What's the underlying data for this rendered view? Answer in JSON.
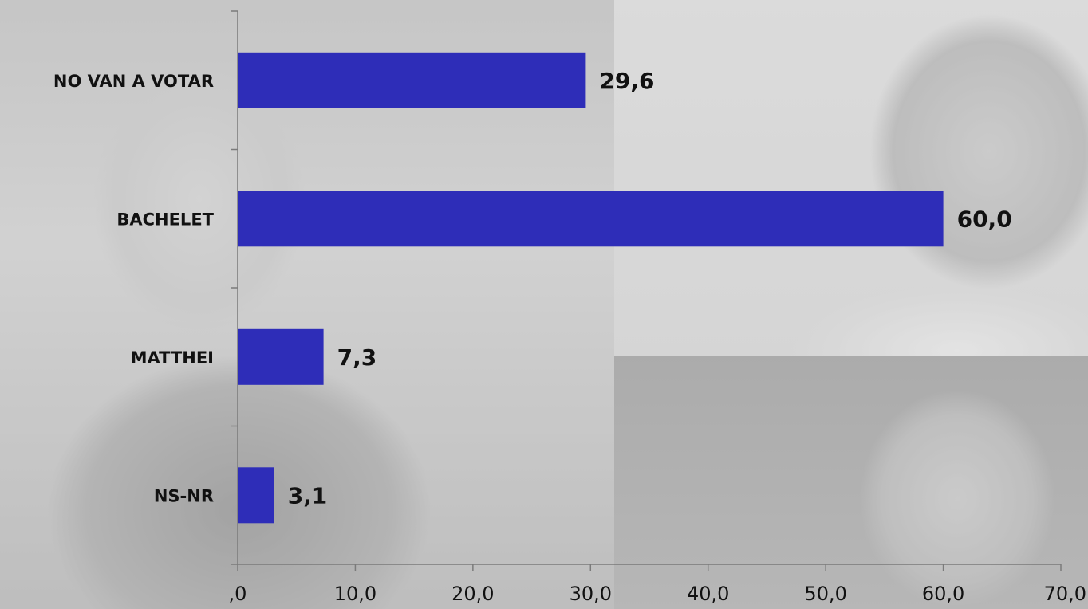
{
  "chart_data": {
    "type": "bar",
    "orientation": "horizontal",
    "categories": [
      "NO VAN A VOTAR",
      "BACHELET",
      "MATTHEI",
      "NS-NR"
    ],
    "values": [
      29.6,
      60.0,
      7.3,
      3.1
    ],
    "value_labels": [
      "29,6",
      "60,0",
      "7,3",
      "3,1"
    ],
    "xlim": [
      0,
      70
    ],
    "x_ticks": [
      0,
      10,
      20,
      30,
      40,
      50,
      60,
      70
    ],
    "x_tick_labels": [
      ",0",
      "10,0",
      "20,0",
      "30,0",
      "40,0",
      "50,0",
      "60,0",
      "70,0"
    ],
    "title": "",
    "xlabel": "",
    "ylabel": "",
    "grid": false,
    "bar_color": "#2e2db8"
  }
}
